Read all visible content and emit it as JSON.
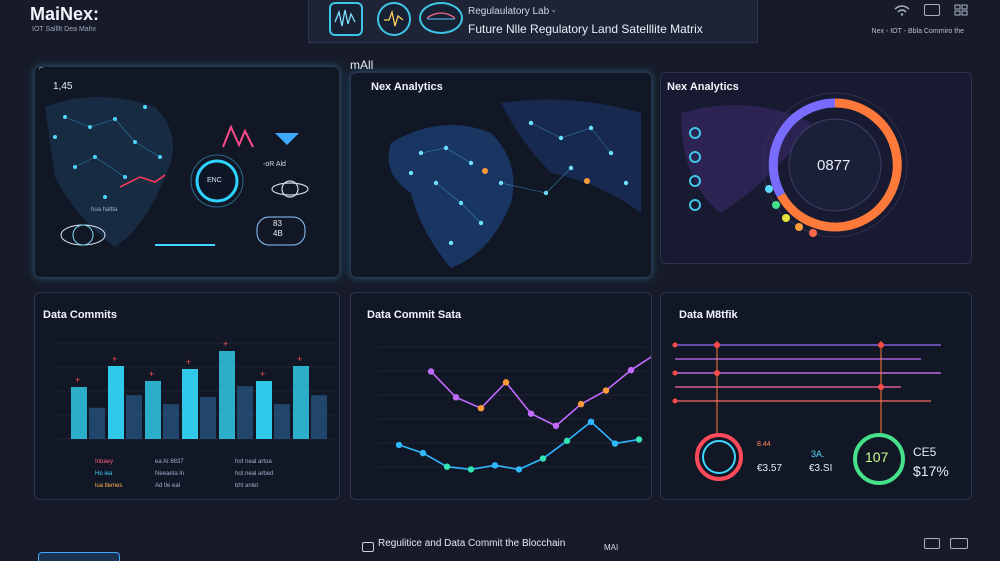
{
  "header": {
    "app_title": "MaiNex:",
    "app_subtitle": "IOT Sallllt Dea Mahx",
    "lab_title": "Regulaulatory Lab -",
    "lab_subtitle": "Future Nlle Regulatory Land Satelllite Matrix",
    "status_text": "Nex - IOT - Bbla Commiro the"
  },
  "left_top": {
    "value_label": "1,45",
    "hud_badge": "ENC",
    "hud_text": "-oR Ald",
    "hud_num": "83",
    "hud_num2": "4B",
    "small_text": "hua haltta"
  },
  "middle_top": {
    "label_above": "mAll",
    "title": "Nex Analytics"
  },
  "right_top": {
    "title": "Nex Analytics",
    "gauge_value": "0877"
  },
  "left_bottom": {
    "title": "Data Commits",
    "bars": [
      0.52,
      0.73,
      0.58,
      0.7,
      0.88,
      0.58,
      0.73
    ],
    "legend": [
      {
        "a": "Inbaey",
        "b": "ea AI 8837",
        "c": "hot neal artoa"
      },
      {
        "a": "Ho iea",
        "b": "Neeaeta ln",
        "c": "hot neal arbed"
      },
      {
        "a": "lua tlemes",
        "b": "Ad tle eal",
        "c": "bht anlet"
      }
    ],
    "colors": {
      "bar": "#33d3f3",
      "marker": "#ff4a5a"
    }
  },
  "middle_bottom": {
    "title": "Data Commit Sata",
    "line_a": [
      0.82,
      0.63,
      0.55,
      0.74,
      0.51,
      0.42,
      0.58,
      0.68,
      0.83,
      0.95
    ],
    "line_b": [
      0.28,
      0.22,
      0.12,
      0.1,
      0.13,
      0.1,
      0.18,
      0.31,
      0.45,
      0.29,
      0.32
    ],
    "colors": {
      "a": "#c26bff",
      "b": "#2fb8ff",
      "orange": "#ff9a3a",
      "green": "#35e3b0"
    }
  },
  "right_bottom": {
    "title": "Data M8tfik",
    "stat1_label": "8.44",
    "stat1_val": "€3.57",
    "stat2_label": "3A.",
    "stat2_val": "€3.SI",
    "gauge2_value": "107",
    "cost_label": "CE5",
    "cost_value": "$17%"
  },
  "footer": {
    "text": "Regulitice and Data Commit the Blocchain",
    "tag": "MAI"
  }
}
